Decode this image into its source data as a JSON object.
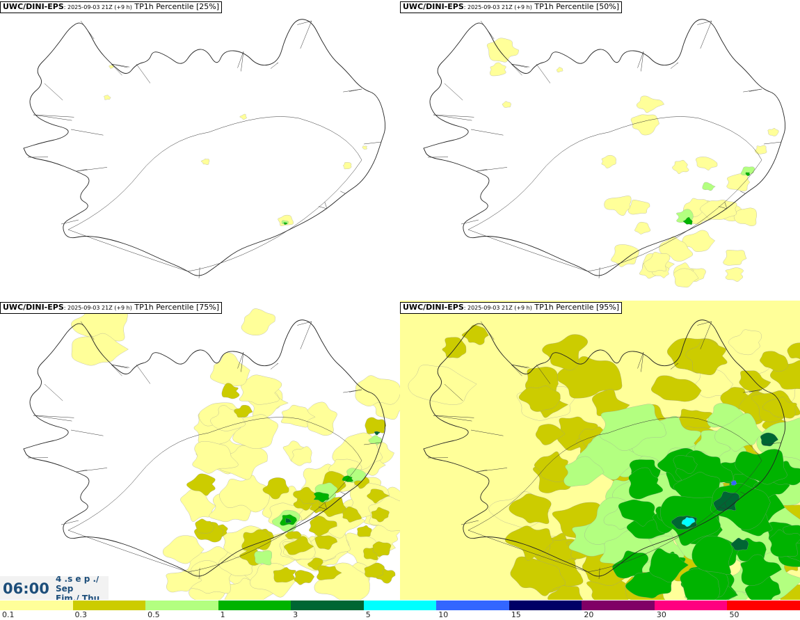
{
  "panels": [
    {
      "model": "UWC/DINI-EPS",
      "run": ": 2025-09-03 21Z (+9 h)",
      "field": " TP1h Percentile [25%]"
    },
    {
      "model": "UWC/DINI-EPS",
      "run": ": 2025-09-03 21Z (+9 h)",
      "field": " TP1h Percentile [50%]"
    },
    {
      "model": "UWC/DINI-EPS",
      "run": ": 2025-09-03 21Z (+9 h)",
      "field": " TP1h Percentile [75%]"
    },
    {
      "model": "UWC/DINI-EPS",
      "run": ": 2025-09-03 21Z (+9 h)",
      "field": " TP1h Percentile [95%]"
    }
  ],
  "valid_time": {
    "time": "06:00",
    "line1": "4 .s e p ./",
    "line2": "Sep",
    "line3": "Fim./ Thu"
  },
  "legend": {
    "labels": [
      "0.1",
      "0.3",
      "0.5",
      "1",
      "3",
      "5",
      "10",
      "15",
      "20",
      "30",
      "50"
    ],
    "colors": [
      "#ffff99",
      "#cccc00",
      "#b3ff80",
      "#00b300",
      "#006633",
      "#00ffff",
      "#3366ff",
      "#000066",
      "#800066",
      "#ff0080",
      "#ff0000"
    ]
  }
}
